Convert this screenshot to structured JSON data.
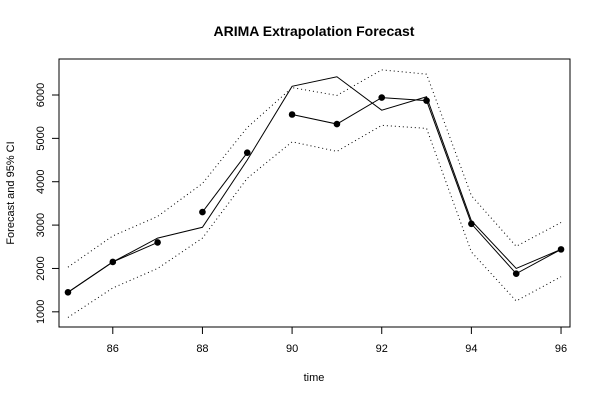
{
  "chart_data": {
    "type": "line",
    "title": "ARIMA Extrapolation Forecast",
    "xlabel": "time",
    "ylabel": "Forecast and 95% CI",
    "xlim": [
      84.8,
      96.2
    ],
    "ylim": [
      650,
      6830
    ],
    "x_ticks": [
      86,
      88,
      90,
      92,
      94,
      96
    ],
    "y_ticks": [
      1000,
      2000,
      3000,
      4000,
      5000,
      6000
    ],
    "grid": false,
    "legend": "none",
    "series": [
      {
        "role": "actual",
        "style": "solid",
        "color": "#000000",
        "x": [
          85,
          86,
          87,
          88,
          89,
          90,
          91,
          92,
          93,
          94,
          95,
          96
        ],
        "y": [
          1450,
          2150,
          2700,
          2950,
          4500,
          6200,
          6420,
          5650,
          5960,
          3100,
          2000,
          2440
        ]
      },
      {
        "role": "forecast",
        "style": "points-connected",
        "color": "#000000",
        "segments": [
          {
            "x": [
              85,
              86,
              87
            ],
            "y": [
              1450,
              2150,
              2600
            ]
          },
          {
            "x": [
              88,
              89
            ],
            "y": [
              3300,
              4670
            ]
          },
          {
            "x": [
              90,
              91,
              92,
              93,
              94,
              95,
              96
            ],
            "y": [
              5550,
              5330,
              5940,
              5870,
              3030,
              1880,
              2440
            ]
          }
        ]
      },
      {
        "role": "upper-95",
        "style": "dotted",
        "color": "#000000",
        "x": [
          85,
          86,
          87,
          88,
          89,
          90,
          91,
          92,
          93,
          94,
          95,
          96
        ],
        "y": [
          2030,
          2750,
          3200,
          3960,
          5250,
          6170,
          5990,
          6580,
          6480,
          3680,
          2510,
          3060
        ]
      },
      {
        "role": "lower-95",
        "style": "dotted",
        "color": "#000000",
        "x": [
          85,
          86,
          87,
          88,
          89,
          90,
          91,
          92,
          93,
          94,
          95,
          96
        ],
        "y": [
          870,
          1550,
          2000,
          2700,
          4080,
          4920,
          4700,
          5300,
          5230,
          2380,
          1250,
          1810
        ]
      }
    ]
  }
}
